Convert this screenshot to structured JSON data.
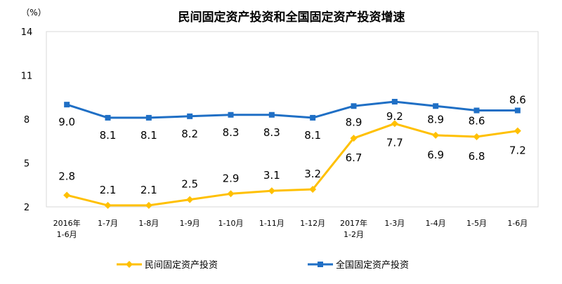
{
  "chart_data": {
    "type": "line",
    "title": "民间固定资产投资和全国固定资产投资增速",
    "unit_label": "（%）",
    "categories": [
      [
        "2016年",
        "1-6月"
      ],
      [
        "1-7月"
      ],
      [
        "1-8月"
      ],
      [
        "1-9月"
      ],
      [
        "1-10月"
      ],
      [
        "1-11月"
      ],
      [
        "1-12月"
      ],
      [
        "2017年",
        "1-2月"
      ],
      [
        "1-3月"
      ],
      [
        "1-4月"
      ],
      [
        "1-5月"
      ],
      [
        "1-6月"
      ]
    ],
    "yticks": [
      2,
      5,
      8,
      11,
      14
    ],
    "ylim": [
      2,
      14
    ],
    "grid": false,
    "legend_position": "bottom",
    "series": [
      {
        "name": "民间固定资产投资",
        "color": "#FFC000",
        "marker": "diamond",
        "values": [
          2.8,
          2.1,
          2.1,
          2.5,
          2.9,
          3.1,
          3.2,
          6.7,
          7.7,
          6.9,
          6.8,
          7.2
        ],
        "labels": [
          "2.8",
          "2.1",
          "2.1",
          "2.5",
          "2.9",
          "3.1",
          "3.2",
          "6.7",
          "7.7",
          "6.9",
          "6.8",
          "7.2"
        ]
      },
      {
        "name": "全国固定资产投资",
        "color": "#1F6FC5",
        "marker": "square",
        "values": [
          9.0,
          8.1,
          8.1,
          8.2,
          8.3,
          8.3,
          8.1,
          8.9,
          9.2,
          8.9,
          8.6,
          8.6
        ],
        "labels": [
          "9.0",
          "8.1",
          "8.1",
          "8.2",
          "8.3",
          "8.3",
          "8.1",
          "8.9",
          "9.2",
          "8.9",
          "8.6",
          "8.6"
        ]
      }
    ]
  }
}
